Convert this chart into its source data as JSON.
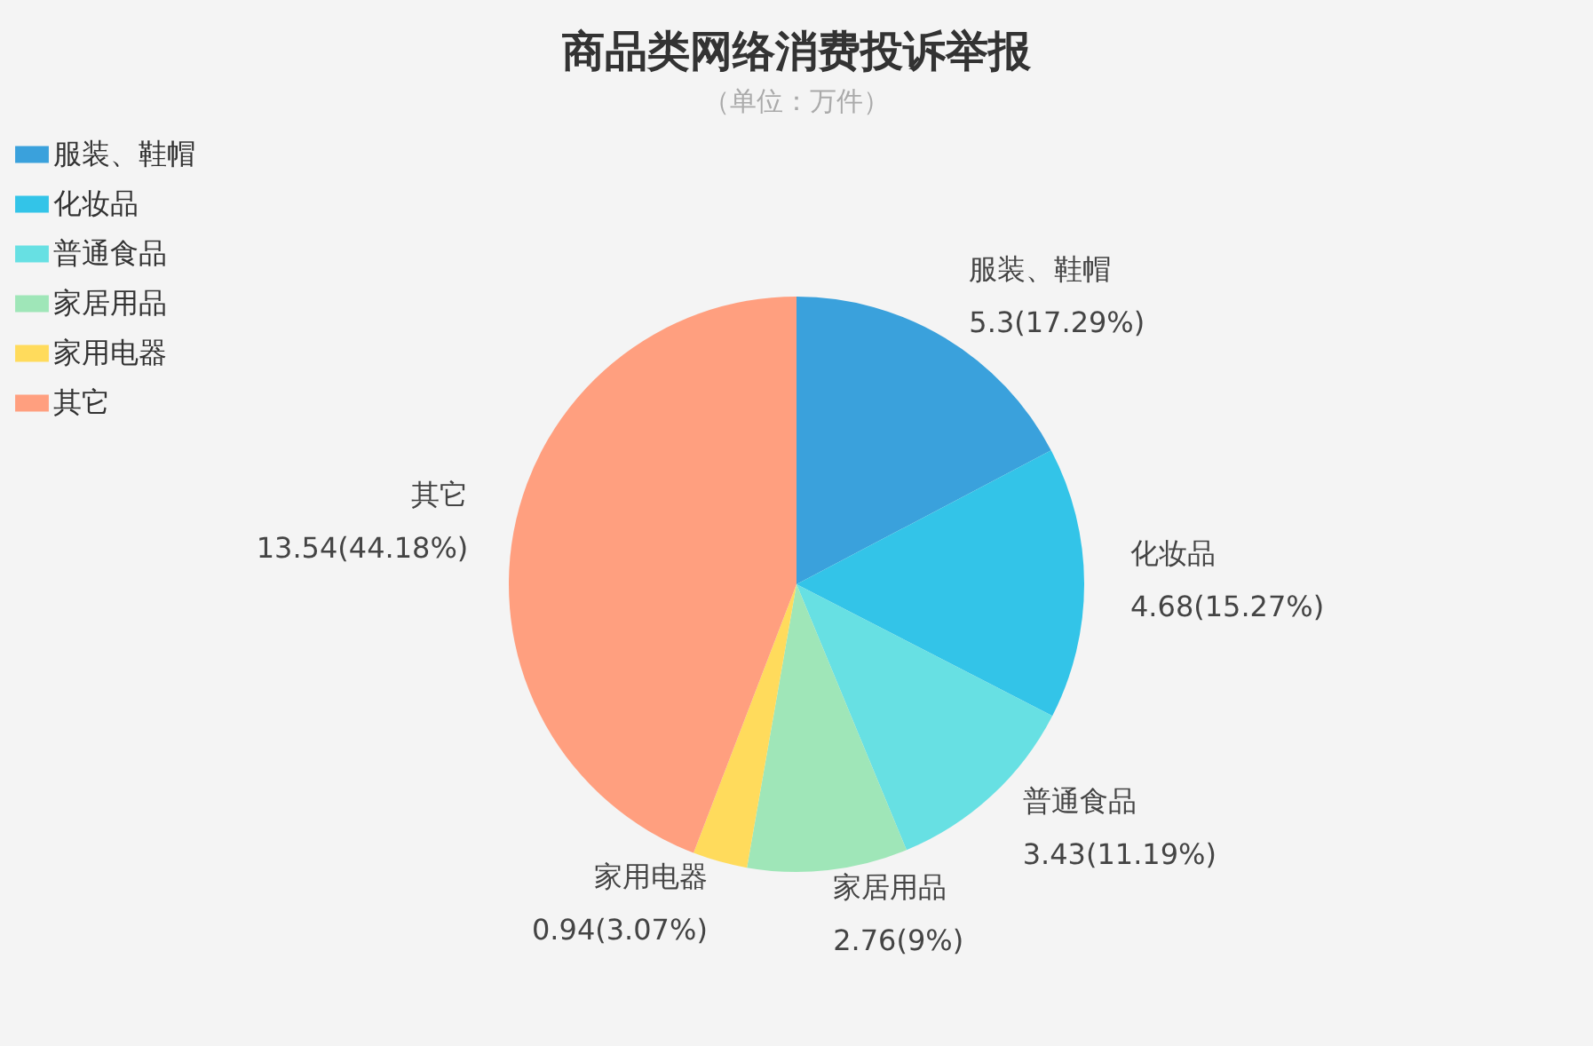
{
  "chart_data": {
    "type": "pie",
    "title": "商品类网络消费投诉举报",
    "subtitle": "（单位：万件）",
    "categories": [
      "服装、鞋帽",
      "化妆品",
      "普通食品",
      "家居用品",
      "家用电器",
      "其它"
    ],
    "values": [
      5.3,
      4.68,
      3.43,
      2.76,
      0.94,
      13.54
    ],
    "value_labels": [
      "5.3(17.29%)",
      "4.68(15.27%)",
      "3.43(11.19%)",
      "2.76(9%)",
      "0.94(3.07%)",
      "13.54(44.18%)"
    ],
    "colors": [
      "#3aa1dc",
      "#33c4e8",
      "#67e0e3",
      "#9fe6b8",
      "#ffdb5c",
      "#ff9f7f"
    ],
    "legend": "top left"
  }
}
